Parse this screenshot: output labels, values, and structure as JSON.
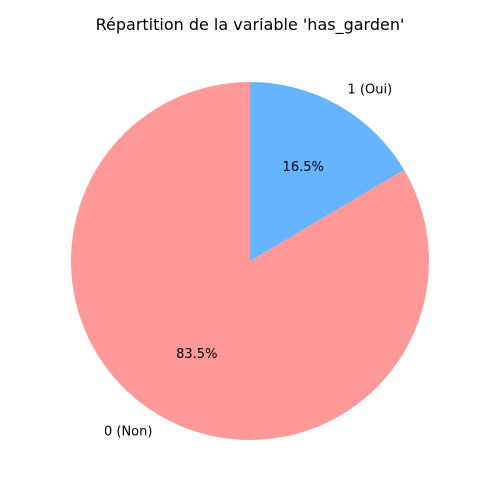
{
  "chart_data": {
    "type": "pie",
    "title": "Répartition de la variable 'has_garden'",
    "labels": [
      "0 (Non)",
      "1 (Oui)"
    ],
    "values": [
      83.5,
      16.5
    ],
    "value_labels": [
      "83.5%",
      "16.5%"
    ],
    "colors": [
      "#ff9999",
      "#66b3ff"
    ],
    "start_angle_deg": 90,
    "direction": "counterclockwise",
    "legend": "none"
  }
}
